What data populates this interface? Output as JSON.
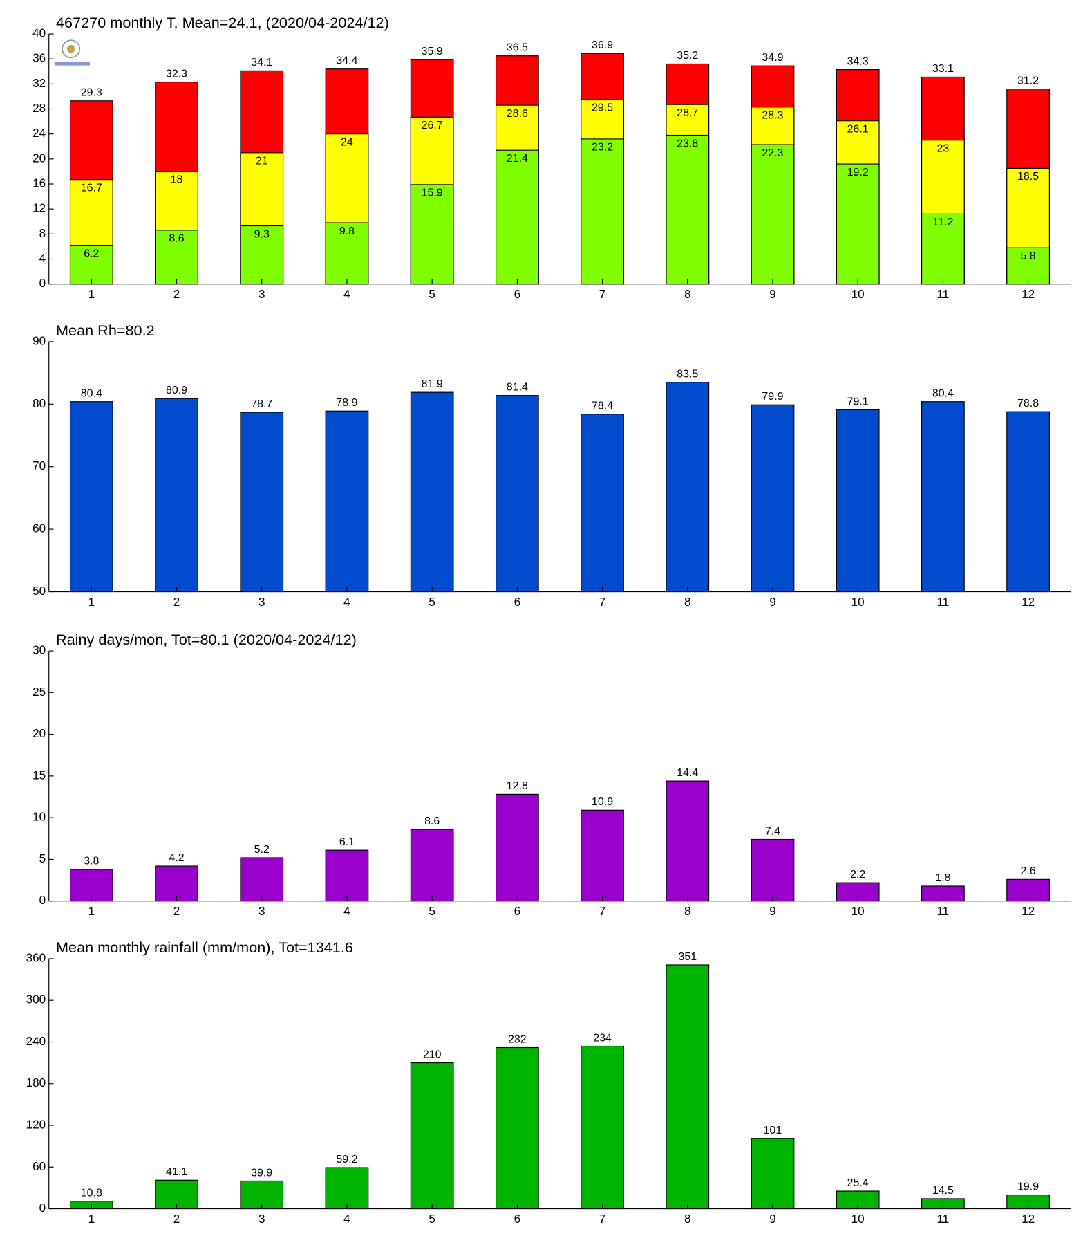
{
  "chart_data": [
    {
      "type": "bar",
      "title": "467270 monthly T, Mean=24.1, (2020/04-2024/12)",
      "categories": [
        1,
        2,
        3,
        4,
        5,
        6,
        7,
        8,
        9,
        10,
        11,
        12
      ],
      "series": [
        {
          "color": "#ff0000",
          "values": [
            29.3,
            32.3,
            34.1,
            34.4,
            35.9,
            36.5,
            36.9,
            35.2,
            34.9,
            34.3,
            33.1,
            31.2
          ]
        },
        {
          "color": "#ffff00",
          "values": [
            16.7,
            18,
            21,
            24,
            26.7,
            28.6,
            29.5,
            28.7,
            28.3,
            26.1,
            23,
            18.5
          ]
        },
        {
          "color": "#80ff00",
          "values": [
            6.2,
            8.6,
            9.3,
            9.8,
            15.9,
            21.4,
            23.2,
            23.8,
            22.3,
            19.2,
            11.2,
            5.8
          ]
        }
      ],
      "ylim": [
        0,
        40
      ],
      "yticks": [
        0,
        4,
        8,
        12,
        16,
        20,
        24,
        28,
        32,
        36,
        40
      ]
    },
    {
      "type": "bar",
      "title": "Mean Rh=80.2",
      "categories": [
        1,
        2,
        3,
        4,
        5,
        6,
        7,
        8,
        9,
        10,
        11,
        12
      ],
      "series": [
        {
          "color": "#004ccc",
          "values": [
            80.4,
            80.9,
            78.7,
            78.9,
            81.9,
            81.4,
            78.4,
            83.5,
            79.9,
            79.1,
            80.4,
            78.8
          ]
        }
      ],
      "ylim": [
        50,
        90
      ],
      "yticks": [
        50,
        60,
        70,
        80,
        90
      ]
    },
    {
      "type": "bar",
      "title": "Rainy days/mon, Tot=80.1 (2020/04-2024/12)",
      "categories": [
        1,
        2,
        3,
        4,
        5,
        6,
        7,
        8,
        9,
        10,
        11,
        12
      ],
      "series": [
        {
          "color": "#9900cc",
          "values": [
            3.8,
            4.2,
            5.2,
            6.1,
            8.6,
            12.8,
            10.9,
            14.4,
            7.4,
            2.2,
            1.8,
            2.6
          ]
        }
      ],
      "ylim": [
        0,
        30
      ],
      "yticks": [
        0,
        5,
        10,
        15,
        20,
        25,
        30
      ]
    },
    {
      "type": "bar",
      "title": "Mean monthly rainfall (mm/mon), Tot=1341.6",
      "categories": [
        1,
        2,
        3,
        4,
        5,
        6,
        7,
        8,
        9,
        10,
        11,
        12
      ],
      "series": [
        {
          "color": "#00b300",
          "values": [
            10.8,
            41.1,
            39.9,
            59.2,
            210,
            232,
            234,
            351,
            101,
            25.4,
            14.5,
            19.9
          ]
        }
      ],
      "ylim": [
        0,
        360
      ],
      "yticks": [
        0,
        60,
        120,
        180,
        240,
        300,
        360
      ]
    }
  ]
}
